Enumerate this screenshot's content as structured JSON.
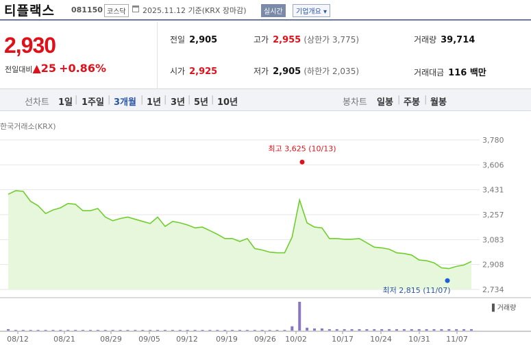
{
  "header": {
    "name": "티플랙스",
    "code": "081150",
    "market": "코스닥",
    "date_text": "2025.11.12 기준(KRX 장마감)",
    "realtime": "실시간",
    "company_overview": "기업개요 ▾"
  },
  "quote": {
    "price": "2,930",
    "change_label": "전일대비",
    "change": "▲25",
    "change_pct": "+0.86%",
    "prev_label": "전일",
    "prev": "2,905",
    "high_label": "고가",
    "high": "2,955",
    "upper_limit": "(상한가 3,775)",
    "volume_label": "거래량",
    "volume": "39,714",
    "open_label": "시가",
    "open": "2,925",
    "low_label": "저가",
    "low": "2,905",
    "lower_limit": "(하한가 2,035)",
    "amount_label": "거래대금",
    "amount": "116 백만"
  },
  "periods": {
    "line_label": "선차트",
    "line": [
      "1일",
      "1주일",
      "3개월",
      "1년",
      "3년",
      "5년",
      "10년"
    ],
    "selected": "3개월",
    "candle_label": "봉차트",
    "candle": [
      "일봉",
      "주봉",
      "월봉"
    ]
  },
  "chart_source": "한국거래소(KRX)",
  "chart_data": {
    "type": "area",
    "y_ticks": [
      "3,780",
      "3,606",
      "3,431",
      "3,257",
      "3,083",
      "2,908",
      "2,734"
    ],
    "ylim": [
      2734,
      3780
    ],
    "x_ticks": [
      "08/12",
      "08/21",
      "08/29",
      "09/05",
      "09/12",
      "09/19",
      "09/26",
      "10/02",
      "10/17",
      "10/24",
      "10/31",
      "11/07"
    ],
    "high_annotation": "최고 3,625 (10/13)",
    "low_annotation": "최저 2,815 (11/07)",
    "high_value": 3625,
    "low_value": 2815,
    "prices": [
      3400,
      3425,
      3420,
      3350,
      3320,
      3265,
      3290,
      3305,
      3335,
      3330,
      3285,
      3285,
      3300,
      3240,
      3215,
      3230,
      3240,
      3225,
      3210,
      3195,
      3240,
      3175,
      3210,
      3200,
      3185,
      3165,
      3170,
      3145,
      3120,
      3090,
      3090,
      3070,
      3090,
      3020,
      3010,
      2995,
      2990,
      2990,
      3100,
      3360,
      3200,
      3170,
      3165,
      3090,
      3090,
      3085,
      3085,
      3090,
      3060,
      3030,
      3025,
      3015,
      2990,
      2985,
      2975,
      2940,
      2935,
      2920,
      2885,
      2880,
      2895,
      2905,
      2930
    ],
    "volume_label": "▌거래량",
    "volumes": [
      2,
      1,
      1,
      1,
      1,
      1,
      1,
      1,
      1,
      1,
      1,
      1,
      1,
      1,
      1,
      1,
      1,
      1,
      1,
      1,
      1,
      1,
      1,
      1,
      1,
      1,
      1,
      1,
      1,
      1,
      1,
      1,
      1,
      1,
      1,
      1,
      1,
      1,
      6,
      40,
      4,
      3,
      3,
      2,
      2,
      2,
      2,
      2,
      2,
      2,
      2,
      2,
      2,
      2,
      2,
      2,
      2,
      2,
      2,
      2,
      2,
      2,
      2
    ],
    "colors": {
      "line": "#6fce2d",
      "fill": "#e7f7dc",
      "up": "#e0101a",
      "low_dot": "#1c5fd6",
      "volume": "#8a76c4"
    }
  }
}
